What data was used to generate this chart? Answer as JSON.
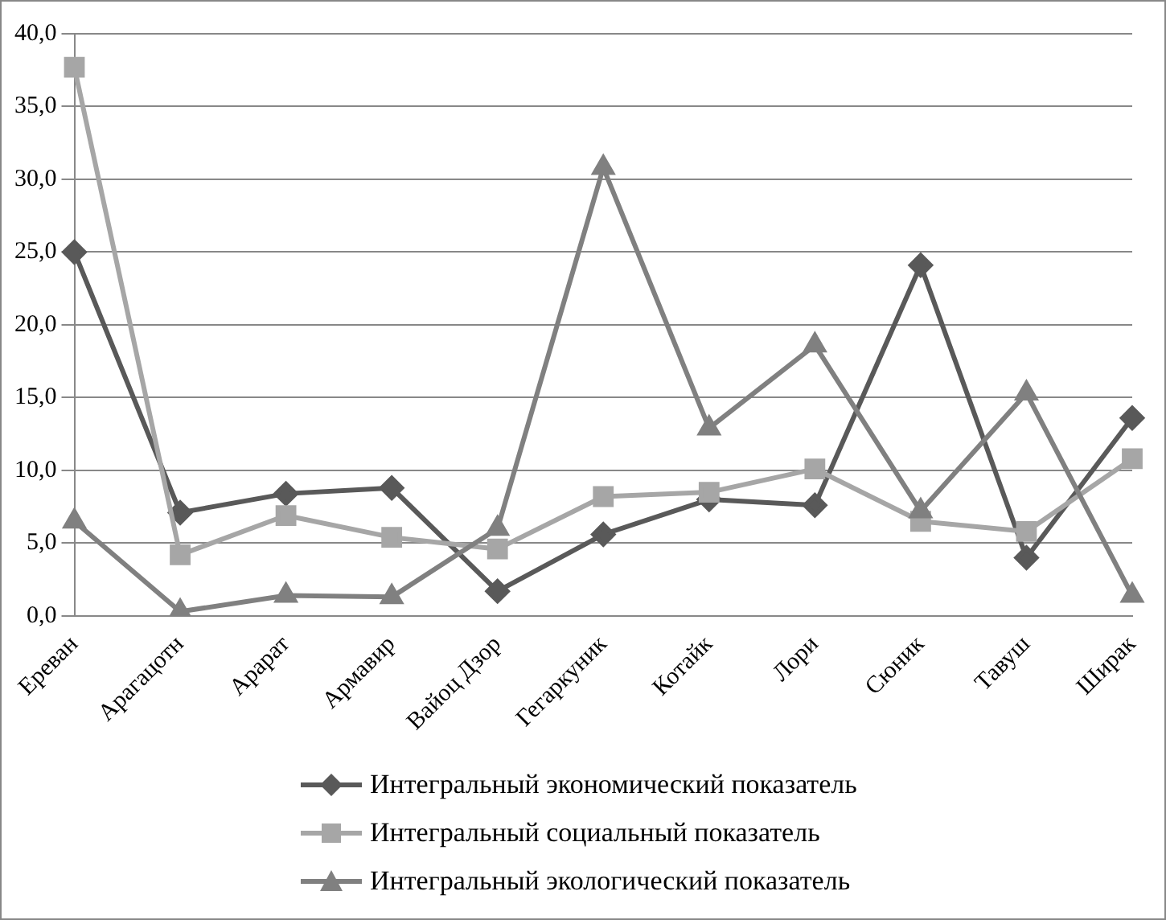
{
  "chart_data": {
    "type": "line",
    "categories": [
      "Ереван",
      "Арагацотн",
      "Арарат",
      "Армавир",
      "Вайоц Дзор",
      "Гегаркуник",
      "Котайк",
      "Лори",
      "Сюник",
      "Тавуш",
      "Ширак"
    ],
    "series": [
      {
        "name": "Интегральный экономический показатель",
        "color": "#595959",
        "marker": "diamond",
        "values": [
          25.0,
          7.1,
          8.4,
          8.8,
          1.7,
          5.6,
          8.0,
          7.6,
          24.1,
          4.0,
          13.6
        ]
      },
      {
        "name": "Интегральный социальный показатель",
        "color": "#a6a6a6",
        "marker": "square",
        "values": [
          37.7,
          4.2,
          6.9,
          5.4,
          4.6,
          8.2,
          8.5,
          10.1,
          6.5,
          5.8,
          10.8
        ]
      },
      {
        "name": "Интегральный экологический показатель",
        "color": "#808080",
        "marker": "triangle",
        "values": [
          6.5,
          0.3,
          1.4,
          1.3,
          6.0,
          30.8,
          12.9,
          18.6,
          7.2,
          15.3,
          1.4
        ]
      }
    ],
    "ylim": [
      0,
      40
    ],
    "yticks": [
      {
        "value": 0,
        "label": "0,0"
      },
      {
        "value": 5,
        "label": "5,0"
      },
      {
        "value": 10,
        "label": "10,0"
      },
      {
        "value": 15,
        "label": "15,0"
      },
      {
        "value": 20,
        "label": "20,0"
      },
      {
        "value": 25,
        "label": "25,0"
      },
      {
        "value": 30,
        "label": "30,0"
      },
      {
        "value": 35,
        "label": "35,0"
      },
      {
        "value": 40,
        "label": "40,0"
      }
    ],
    "grid": "y",
    "legend": "bottom",
    "line_style": "solid"
  }
}
